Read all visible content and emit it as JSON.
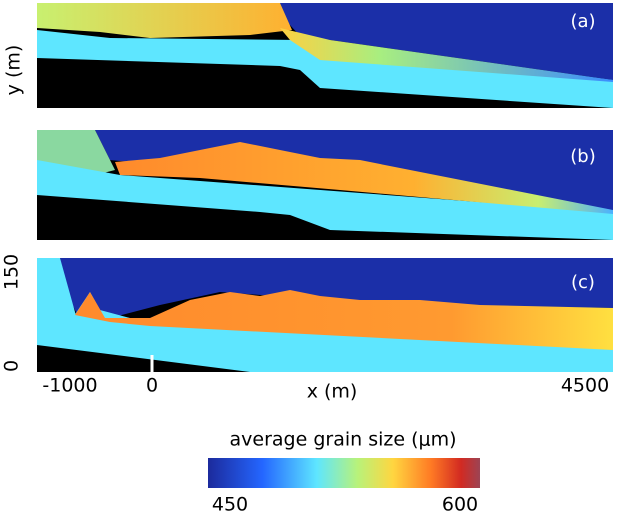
{
  "panels": [
    {
      "label": "(a)"
    },
    {
      "label": "(b)"
    },
    {
      "label": "(c)"
    }
  ],
  "axes": {
    "y_label": "y (m)",
    "y_ticks": [
      "150",
      "0"
    ],
    "x_label": "x (m)",
    "x_ticks": [
      "-1000",
      "0",
      "4500"
    ]
  },
  "colorbar": {
    "title": "average grain size (μm)",
    "min_label": "450",
    "max_label": "600"
  }
}
